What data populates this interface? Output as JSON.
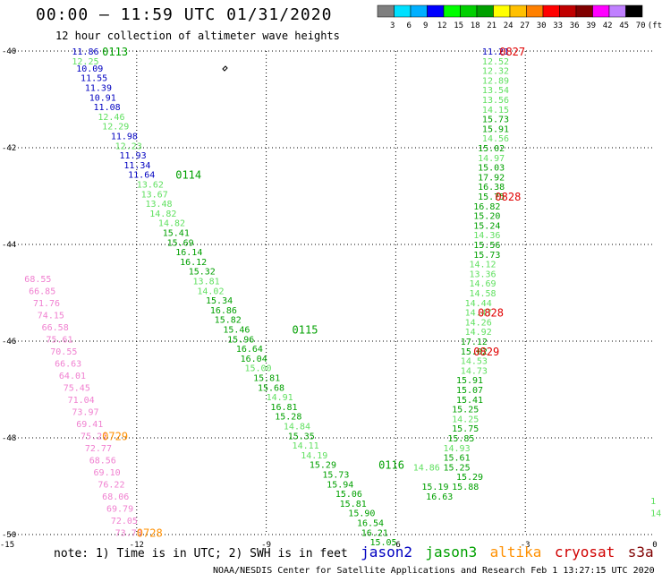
{
  "header": {
    "title": "00:00 – 11:59 UTC 01/31/2020",
    "subtitle": "12 hour collection of altimeter wave heights"
  },
  "colorbar": {
    "ticks": [
      "3",
      "6",
      "9",
      "12",
      "15",
      "18",
      "21",
      "24",
      "27",
      "30",
      "33",
      "36",
      "39",
      "42",
      "45",
      "70",
      "(ft)"
    ],
    "colors": [
      "#7f7f7f",
      "#00e0ff",
      "#00b0ff",
      "#0000ff",
      "#00ff00",
      "#00d000",
      "#00a000",
      "#ffff00",
      "#ffc000",
      "#ff8000",
      "#ff0000",
      "#c00000",
      "#800000",
      "#ff00ff",
      "#c080ff",
      "#000000"
    ]
  },
  "legend": {
    "note": "note: 1) Time is in UTC; 2) SWH is in feet",
    "items": [
      {
        "name": "jason2",
        "color": "#0000c0"
      },
      {
        "name": "jason3",
        "color": "#00a000"
      },
      {
        "name": "altika",
        "color": "#ff9000"
      },
      {
        "name": "cryosat",
        "color": "#d00000"
      },
      {
        "name": "s3a",
        "color": "#800000"
      }
    ]
  },
  "footer": "NOAA/NESDIS Center for Satellite Applications and Research   Feb  1 13:27:15 UTC 2020",
  "chart_data": {
    "type": "scatter",
    "xlim": [
      -15,
      0
    ],
    "ylim": [
      -50,
      -40
    ],
    "xticks": [
      "-15",
      "-12",
      "-9",
      "-6",
      "-3",
      "0"
    ],
    "yticks": [
      "-40",
      "-42",
      "-44",
      "-46",
      "-48",
      "-50"
    ],
    "labels": [
      {
        "x": -13.5,
        "y": -40.0,
        "t": "11.86",
        "c": "#0000c0"
      },
      {
        "x": -13.5,
        "y": -40.2,
        "t": "12.25",
        "c": "#60e060"
      },
      {
        "x": -13.4,
        "y": -40.35,
        "t": "10.09",
        "c": "#0000c0"
      },
      {
        "x": -13.3,
        "y": -40.55,
        "t": "11.55",
        "c": "#0000c0"
      },
      {
        "x": -13.2,
        "y": -40.75,
        "t": "11.39",
        "c": "#0000c0"
      },
      {
        "x": -13.1,
        "y": -40.95,
        "t": "10.91",
        "c": "#0000c0"
      },
      {
        "x": -13.0,
        "y": -41.15,
        "t": "11.08",
        "c": "#0000c0"
      },
      {
        "x": -12.9,
        "y": -41.35,
        "t": "12.46",
        "c": "#60e060"
      },
      {
        "x": -12.8,
        "y": -41.55,
        "t": "12.29",
        "c": "#60e060"
      },
      {
        "x": -12.6,
        "y": -41.75,
        "t": "11.98",
        "c": "#0000c0"
      },
      {
        "x": -12.5,
        "y": -41.95,
        "t": "12.23",
        "c": "#60e060"
      },
      {
        "x": -12.4,
        "y": -42.15,
        "t": "11.93",
        "c": "#0000c0"
      },
      {
        "x": -12.3,
        "y": -42.35,
        "t": "11.34",
        "c": "#0000c0"
      },
      {
        "x": -12.2,
        "y": -42.55,
        "t": "11.64",
        "c": "#0000c0"
      },
      {
        "x": -12.0,
        "y": -42.75,
        "t": "13.62",
        "c": "#60e060"
      },
      {
        "x": -11.9,
        "y": -42.95,
        "t": "13.67",
        "c": "#60e060"
      },
      {
        "x": -11.8,
        "y": -43.15,
        "t": "13.48",
        "c": "#60e060"
      },
      {
        "x": -11.7,
        "y": -43.35,
        "t": "14.82",
        "c": "#60e060"
      },
      {
        "x": -11.5,
        "y": -43.55,
        "t": "14.82",
        "c": "#60e060"
      },
      {
        "x": -11.4,
        "y": -43.75,
        "t": "15.41",
        "c": "#00a000"
      },
      {
        "x": -11.3,
        "y": -43.95,
        "t": "15.69",
        "c": "#00a000"
      },
      {
        "x": -11.1,
        "y": -44.15,
        "t": "16.14",
        "c": "#00a000"
      },
      {
        "x": -11.0,
        "y": -44.35,
        "t": "16.12",
        "c": "#00a000"
      },
      {
        "x": -10.8,
        "y": -44.55,
        "t": "15.32",
        "c": "#00a000"
      },
      {
        "x": -10.7,
        "y": -44.75,
        "t": "13.81",
        "c": "#60e060"
      },
      {
        "x": -10.6,
        "y": -44.95,
        "t": "14.02",
        "c": "#60e060"
      },
      {
        "x": -10.4,
        "y": -45.15,
        "t": "15.34",
        "c": "#00a000"
      },
      {
        "x": -10.3,
        "y": -45.35,
        "t": "16.86",
        "c": "#00a000"
      },
      {
        "x": -10.2,
        "y": -45.55,
        "t": "15.82",
        "c": "#00a000"
      },
      {
        "x": -10.0,
        "y": -45.75,
        "t": "15.46",
        "c": "#00a000"
      },
      {
        "x": -9.9,
        "y": -45.95,
        "t": "15.96",
        "c": "#00a000"
      },
      {
        "x": -9.7,
        "y": -46.15,
        "t": "16.64",
        "c": "#00a000"
      },
      {
        "x": -9.6,
        "y": -46.35,
        "t": "16.04",
        "c": "#00a000"
      },
      {
        "x": -9.5,
        "y": -46.55,
        "t": "15.00",
        "c": "#60e060"
      },
      {
        "x": -9.3,
        "y": -46.75,
        "t": "15.81",
        "c": "#00a000"
      },
      {
        "x": -9.2,
        "y": -46.95,
        "t": "15.68",
        "c": "#00a000"
      },
      {
        "x": -9.0,
        "y": -47.15,
        "t": "14.91",
        "c": "#60e060"
      },
      {
        "x": -8.9,
        "y": -47.35,
        "t": "16.81",
        "c": "#00a000"
      },
      {
        "x": -8.8,
        "y": -47.55,
        "t": "15.28",
        "c": "#00a000"
      },
      {
        "x": -8.6,
        "y": -47.75,
        "t": "14.84",
        "c": "#60e060"
      },
      {
        "x": -8.5,
        "y": -47.95,
        "t": "15.35",
        "c": "#00a000"
      },
      {
        "x": -8.4,
        "y": -48.15,
        "t": "14.11",
        "c": "#60e060"
      },
      {
        "x": -8.2,
        "y": -48.35,
        "t": "14.19",
        "c": "#60e060"
      },
      {
        "x": -8.0,
        "y": -48.55,
        "t": "15.29",
        "c": "#00a000"
      },
      {
        "x": -7.7,
        "y": -48.75,
        "t": "15.73",
        "c": "#00a000"
      },
      {
        "x": -7.6,
        "y": -48.95,
        "t": "15.94",
        "c": "#00a000"
      },
      {
        "x": -7.4,
        "y": -49.15,
        "t": "15.06",
        "c": "#00a000"
      },
      {
        "x": -7.3,
        "y": -49.35,
        "t": "15.81",
        "c": "#00a000"
      },
      {
        "x": -7.1,
        "y": -49.55,
        "t": "15.90",
        "c": "#00a000"
      },
      {
        "x": -6.9,
        "y": -49.75,
        "t": "16.54",
        "c": "#00a000"
      },
      {
        "x": -6.8,
        "y": -49.95,
        "t": "16.21",
        "c": "#00a000"
      },
      {
        "x": -6.6,
        "y": -50.15,
        "t": "15.05",
        "c": "#00a000"
      },
      {
        "x": -4.0,
        "y": -40.0,
        "t": "11.21",
        "c": "#0000c0"
      },
      {
        "x": -4.0,
        "y": -40.2,
        "t": "12.52",
        "c": "#60e060"
      },
      {
        "x": -4.0,
        "y": -40.4,
        "t": "12.32",
        "c": "#60e060"
      },
      {
        "x": -4.0,
        "y": -40.6,
        "t": "12.89",
        "c": "#60e060"
      },
      {
        "x": -4.0,
        "y": -40.8,
        "t": "13.54",
        "c": "#60e060"
      },
      {
        "x": -4.0,
        "y": -41.0,
        "t": "13.56",
        "c": "#60e060"
      },
      {
        "x": -4.0,
        "y": -41.2,
        "t": "14.15",
        "c": "#60e060"
      },
      {
        "x": -4.0,
        "y": -41.4,
        "t": "15.73",
        "c": "#00a000"
      },
      {
        "x": -4.0,
        "y": -41.6,
        "t": "15.91",
        "c": "#00a000"
      },
      {
        "x": -4.0,
        "y": -41.8,
        "t": "14.56",
        "c": "#60e060"
      },
      {
        "x": -4.1,
        "y": -42.0,
        "t": "15.02",
        "c": "#00a000"
      },
      {
        "x": -4.1,
        "y": -42.2,
        "t": "14.97",
        "c": "#60e060"
      },
      {
        "x": -4.1,
        "y": -42.4,
        "t": "15.03",
        "c": "#00a000"
      },
      {
        "x": -4.1,
        "y": -42.6,
        "t": "17.92",
        "c": "#00a000"
      },
      {
        "x": -4.1,
        "y": -42.8,
        "t": "16.38",
        "c": "#00a000"
      },
      {
        "x": -4.1,
        "y": -43.0,
        "t": "15.75",
        "c": "#00a000"
      },
      {
        "x": -4.2,
        "y": -43.2,
        "t": "16.82",
        "c": "#00a000"
      },
      {
        "x": -4.2,
        "y": -43.4,
        "t": "15.20",
        "c": "#00a000"
      },
      {
        "x": -4.2,
        "y": -43.6,
        "t": "15.24",
        "c": "#00a000"
      },
      {
        "x": -4.2,
        "y": -43.8,
        "t": "14.36",
        "c": "#60e060"
      },
      {
        "x": -4.2,
        "y": -44.0,
        "t": "15.56",
        "c": "#00a000"
      },
      {
        "x": -4.2,
        "y": -44.2,
        "t": "15.73",
        "c": "#00a000"
      },
      {
        "x": -4.3,
        "y": -44.4,
        "t": "14.12",
        "c": "#60e060"
      },
      {
        "x": -4.3,
        "y": -44.6,
        "t": "13.36",
        "c": "#60e060"
      },
      {
        "x": -4.3,
        "y": -44.8,
        "t": "14.69",
        "c": "#60e060"
      },
      {
        "x": -4.3,
        "y": -45.0,
        "t": "14.58",
        "c": "#60e060"
      },
      {
        "x": -4.4,
        "y": -45.2,
        "t": "14.44",
        "c": "#60e060"
      },
      {
        "x": -4.4,
        "y": -45.4,
        "t": "14.47",
        "c": "#60e060"
      },
      {
        "x": -4.4,
        "y": -45.6,
        "t": "14.26",
        "c": "#60e060"
      },
      {
        "x": -4.4,
        "y": -45.8,
        "t": "14.92",
        "c": "#60e060"
      },
      {
        "x": -4.5,
        "y": -46.0,
        "t": "17.12",
        "c": "#00a000"
      },
      {
        "x": -4.5,
        "y": -46.2,
        "t": "15.02",
        "c": "#00a000"
      },
      {
        "x": -4.5,
        "y": -46.4,
        "t": "14.53",
        "c": "#60e060"
      },
      {
        "x": -4.5,
        "y": -46.6,
        "t": "14.73",
        "c": "#60e060"
      },
      {
        "x": -4.6,
        "y": -46.8,
        "t": "15.91",
        "c": "#00a000"
      },
      {
        "x": -4.6,
        "y": -47.0,
        "t": "15.07",
        "c": "#00a000"
      },
      {
        "x": -4.6,
        "y": -47.2,
        "t": "15.41",
        "c": "#00a000"
      },
      {
        "x": -4.7,
        "y": -47.4,
        "t": "15.25",
        "c": "#00a000"
      },
      {
        "x": -4.7,
        "y": -47.6,
        "t": "14.25",
        "c": "#60e060"
      },
      {
        "x": -4.7,
        "y": -47.8,
        "t": "15.75",
        "c": "#00a000"
      },
      {
        "x": -4.8,
        "y": -48.0,
        "t": "15.85",
        "c": "#00a000"
      },
      {
        "x": -4.9,
        "y": -48.2,
        "t": "14.93",
        "c": "#60e060"
      },
      {
        "x": -4.9,
        "y": -48.4,
        "t": "15.61",
        "c": "#00a000"
      },
      {
        "x": -4.9,
        "y": -48.6,
        "t": "15.25",
        "c": "#00a000"
      },
      {
        "x": -4.6,
        "y": -48.8,
        "t": "15.29",
        "c": "#00a000"
      },
      {
        "x": -4.7,
        "y": -49.0,
        "t": "15.88",
        "c": "#00a000"
      },
      {
        "x": -5.4,
        "y": -49.0,
        "t": "15.19",
        "c": "#00a000"
      },
      {
        "x": -5.3,
        "y": -49.2,
        "t": "16.63",
        "c": "#00a000"
      },
      {
        "x": -5.6,
        "y": -48.6,
        "t": "14.86",
        "c": "#60e060"
      },
      {
        "x": -14.6,
        "y": -44.7,
        "t": "68.55",
        "c": "#f080d0"
      },
      {
        "x": -14.5,
        "y": -44.95,
        "t": "66.85",
        "c": "#f080d0"
      },
      {
        "x": -14.4,
        "y": -45.2,
        "t": "71.76",
        "c": "#f080d0"
      },
      {
        "x": -14.3,
        "y": -45.45,
        "t": "74.15",
        "c": "#f080d0"
      },
      {
        "x": -14.2,
        "y": -45.7,
        "t": "66.58",
        "c": "#f080d0"
      },
      {
        "x": -14.1,
        "y": -45.95,
        "t": "75.61",
        "c": "#f080d0"
      },
      {
        "x": -14.0,
        "y": -46.2,
        "t": "70.55",
        "c": "#f080d0"
      },
      {
        "x": -13.9,
        "y": -46.45,
        "t": "66.63",
        "c": "#f080d0"
      },
      {
        "x": -13.8,
        "y": -46.7,
        "t": "64.01",
        "c": "#f080d0"
      },
      {
        "x": -13.7,
        "y": -46.95,
        "t": "75.45",
        "c": "#f080d0"
      },
      {
        "x": -13.6,
        "y": -47.2,
        "t": "71.04",
        "c": "#f080d0"
      },
      {
        "x": -13.5,
        "y": -47.45,
        "t": "73.97",
        "c": "#f080d0"
      },
      {
        "x": -13.4,
        "y": -47.7,
        "t": "69.41",
        "c": "#f080d0"
      },
      {
        "x": -13.3,
        "y": -47.95,
        "t": "75.21",
        "c": "#f080d0"
      },
      {
        "x": -13.2,
        "y": -48.2,
        "t": "72.77",
        "c": "#f080d0"
      },
      {
        "x": -13.1,
        "y": -48.45,
        "t": "68.56",
        "c": "#f080d0"
      },
      {
        "x": -13.0,
        "y": -48.7,
        "t": "69.10",
        "c": "#f080d0"
      },
      {
        "x": -12.9,
        "y": -48.95,
        "t": "76.22",
        "c": "#f080d0"
      },
      {
        "x": -12.8,
        "y": -49.2,
        "t": "68.06",
        "c": "#f080d0"
      },
      {
        "x": -12.7,
        "y": -49.45,
        "t": "69.79",
        "c": "#f080d0"
      },
      {
        "x": -12.6,
        "y": -49.7,
        "t": "72.05",
        "c": "#f080d0"
      },
      {
        "x": -12.5,
        "y": -49.95,
        "t": "73.73",
        "c": "#f080d0"
      },
      {
        "x": -0.1,
        "y": -49.3,
        "t": "1",
        "c": "#60e060"
      },
      {
        "x": -0.1,
        "y": -49.55,
        "t": "14",
        "c": "#60e060"
      }
    ],
    "pass_labels": [
      {
        "x": -12.8,
        "y": -40.0,
        "t": "0113",
        "c": "#00a000"
      },
      {
        "x": -11.1,
        "y": -42.55,
        "t": "0114",
        "c": "#00a000"
      },
      {
        "x": -8.4,
        "y": -45.75,
        "t": "0115",
        "c": "#00a000"
      },
      {
        "x": -6.4,
        "y": -48.55,
        "t": "0116",
        "c": "#00a000"
      },
      {
        "x": -3.6,
        "y": -40.0,
        "t": "0827",
        "c": "#e00000"
      },
      {
        "x": -3.7,
        "y": -43.0,
        "t": "0828",
        "c": "#e00000"
      },
      {
        "x": -4.1,
        "y": -45.4,
        "t": "0828",
        "c": "#e00000"
      },
      {
        "x": -4.2,
        "y": -46.2,
        "t": "0829",
        "c": "#e00000"
      },
      {
        "x": -12.8,
        "y": -47.95,
        "t": "0729",
        "c": "#ff9000"
      },
      {
        "x": -12.0,
        "y": -49.95,
        "t": "0728",
        "c": "#ff9000"
      }
    ]
  }
}
